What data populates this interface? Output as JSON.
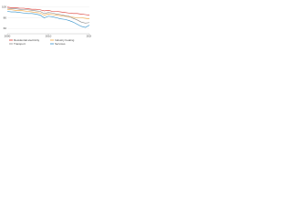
{
  "chart_data": {
    "type": "line",
    "x": [
      2000,
      2001,
      2002,
      2003,
      2004,
      2005,
      2006,
      2007,
      2008,
      2009,
      2010,
      2011,
      2012,
      2013,
      2014,
      2015,
      2016,
      2017,
      2018,
      2019,
      2020
    ],
    "series": [
      {
        "name": "Residential electricity",
        "color": "#d9332b",
        "values": [
          100,
          99,
          99,
          98,
          98,
          97,
          96,
          96,
          95,
          93,
          94,
          92,
          92,
          91,
          90,
          89,
          88,
          88,
          87,
          86,
          85
        ]
      },
      {
        "name": "Industry heating",
        "color": "#f0a23b",
        "values": [
          96,
          95,
          94,
          94,
          93,
          92,
          91,
          90,
          89,
          85,
          87,
          86,
          85,
          84,
          83,
          82,
          81,
          80,
          80,
          79,
          78
        ]
      },
      {
        "name": "Transport",
        "color": "#8c8c8c",
        "values": [
          98,
          97,
          97,
          96,
          95,
          95,
          94,
          93,
          92,
          88,
          90,
          89,
          87,
          86,
          84,
          83,
          79,
          76,
          72,
          70,
          71
        ]
      },
      {
        "name": "Services",
        "color": "#2f8fc9",
        "values": [
          92,
          91,
          91,
          90,
          89,
          88,
          88,
          87,
          85,
          80,
          83,
          82,
          80,
          78,
          77,
          75,
          72,
          68,
          64,
          62,
          66
        ]
      }
    ],
    "xlim": [
      2000,
      2020
    ],
    "xticks": [
      2000,
      2010,
      2020
    ],
    "ylim": [
      50,
      110
    ],
    "yticks": [
      60,
      80,
      100
    ],
    "grid": true,
    "legend": "bottom"
  }
}
